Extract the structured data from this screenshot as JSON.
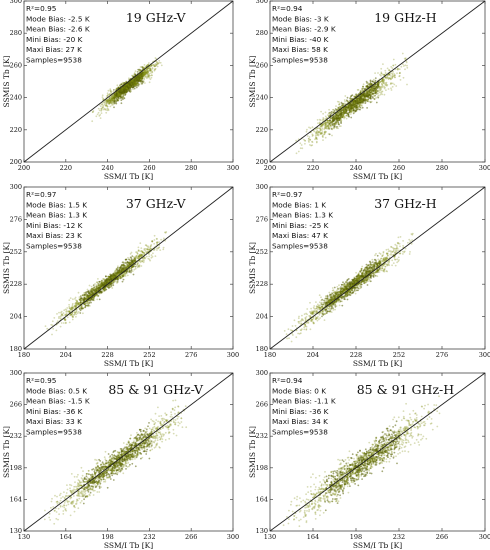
{
  "chart_data": [
    {
      "type": "scatter",
      "title": "19 GHz-V",
      "xlabel": "SSM/I Tb [K]",
      "ylabel": "SSMIS Tb [K]",
      "xlim": [
        200,
        300
      ],
      "ylim": [
        200,
        300
      ],
      "xticks": [
        "200",
        "220",
        "240",
        "260",
        "280",
        "300"
      ],
      "yticks": [
        "200",
        "220",
        "240",
        "260",
        "280",
        "300"
      ],
      "stats": [
        "R²=0.95",
        "Mode Bias: -2.5 K",
        "Mean Bias: -2.6 K",
        "Mini Bias: -20 K",
        "Maxi Bias: 27 K",
        "Samples=9538"
      ],
      "cloud": {
        "x_range": [
          236,
          264
        ],
        "offset": -2.6,
        "spread": 1.6
      },
      "reference_line": "1:1"
    },
    {
      "type": "scatter",
      "title": "19 GHz-H",
      "xlabel": "SSM/I Tb [K]",
      "ylabel": "SSMIS Tb [K]",
      "xlim": [
        200,
        300
      ],
      "ylim": [
        200,
        300
      ],
      "xticks": [
        "200",
        "220",
        "240",
        "260",
        "280",
        "300"
      ],
      "yticks": [
        "200",
        "220",
        "240",
        "260",
        "280",
        "300"
      ],
      "stats": [
        "R²=0.94",
        "Mode Bias: -3 K",
        "Mean Bias: -2.9 K",
        "Mini Bias: -40 K",
        "Maxi Bias: 58 K",
        "Samples=9538"
      ],
      "cloud": {
        "x_range": [
          216,
          262
        ],
        "offset": -2.9,
        "spread": 2.4
      },
      "reference_line": "1:1"
    },
    {
      "type": "scatter",
      "title": "37 GHz-V",
      "xlabel": "SSM/I Tb [K]",
      "ylabel": "SSMIS Tb [K]",
      "xlim": [
        180,
        300
      ],
      "ylim": [
        180,
        300
      ],
      "xticks": [
        "180",
        "204",
        "228",
        "252",
        "276",
        "300"
      ],
      "yticks": [
        "180",
        "204",
        "228",
        "252",
        "276",
        "300"
      ],
      "stats": [
        "R²=0.97",
        "Mode Bias: 1.5 K",
        "Mean Bias: 1.3 K",
        "Mini Bias: -12 K",
        "Maxi Bias: 23 K",
        "Samples=9538"
      ],
      "cloud": {
        "x_range": [
          196,
          260
        ],
        "offset": 1.3,
        "spread": 2.2
      },
      "reference_line": "1:1"
    },
    {
      "type": "scatter",
      "title": "37 GHz-H",
      "xlabel": "SSM/I Tb [K]",
      "ylabel": "SSMIS Tb [K]",
      "xlim": [
        180,
        300
      ],
      "ylim": [
        180,
        300
      ],
      "xticks": [
        "180",
        "204",
        "228",
        "252",
        "276",
        "300"
      ],
      "yticks": [
        "180",
        "204",
        "228",
        "252",
        "276",
        "300"
      ],
      "stats": [
        "R²=0.97",
        "Mode Bias: 1 K",
        "Mean Bias: 1.3 K",
        "Mini Bias: -25 K",
        "Maxi Bias: 47 K",
        "Samples=9538"
      ],
      "cloud": {
        "x_range": [
          192,
          258
        ],
        "offset": 1.3,
        "spread": 2.6
      },
      "reference_line": "1:1"
    },
    {
      "type": "scatter",
      "title": "85 & 91 GHz-V",
      "xlabel": "SSM/I Tb [K]",
      "ylabel": "SSMIS Tb [K]",
      "xlim": [
        130,
        300
      ],
      "ylim": [
        130,
        300
      ],
      "xticks": [
        "130",
        "164",
        "198",
        "232",
        "266",
        "300"
      ],
      "yticks": [
        "130",
        "164",
        "198",
        "232",
        "266",
        "300"
      ],
      "stats": [
        "R²=0.95",
        "Mode Bias: 0.5 K",
        "Mean Bias: -1.5 K",
        "Mini Bias: -36 K",
        "Maxi Bias: 33 K",
        "Samples=9538"
      ],
      "cloud": {
        "x_range": [
          150,
          262
        ],
        "offset": -1.5,
        "spread": 5.5
      },
      "reference_line": "1:1"
    },
    {
      "type": "scatter",
      "title": "85 & 91 GHz-H",
      "xlabel": "SSM/I Tb [K]",
      "ylabel": "SSMIS Tb [K]",
      "xlim": [
        130,
        300
      ],
      "ylim": [
        130,
        300
      ],
      "xticks": [
        "130",
        "164",
        "198",
        "232",
        "266",
        "300"
      ],
      "yticks": [
        "130",
        "164",
        "198",
        "232",
        "266",
        "300"
      ],
      "stats": [
        "R²=0.94",
        "Mode Bias: 0 K",
        "Mean Bias: -1.1 K",
        "Mini Bias: -36 K",
        "Maxi Bias: 34 K",
        "Samples=9538"
      ],
      "cloud": {
        "x_range": [
          144,
          262
        ],
        "offset": -1.1,
        "spread": 6.5
      },
      "reference_line": "1:1"
    }
  ],
  "colors": {
    "points": "#7d8a0e",
    "points_core": "#5a6208",
    "reference_line": "#222222",
    "axes": "#444444",
    "text": "#111111"
  }
}
